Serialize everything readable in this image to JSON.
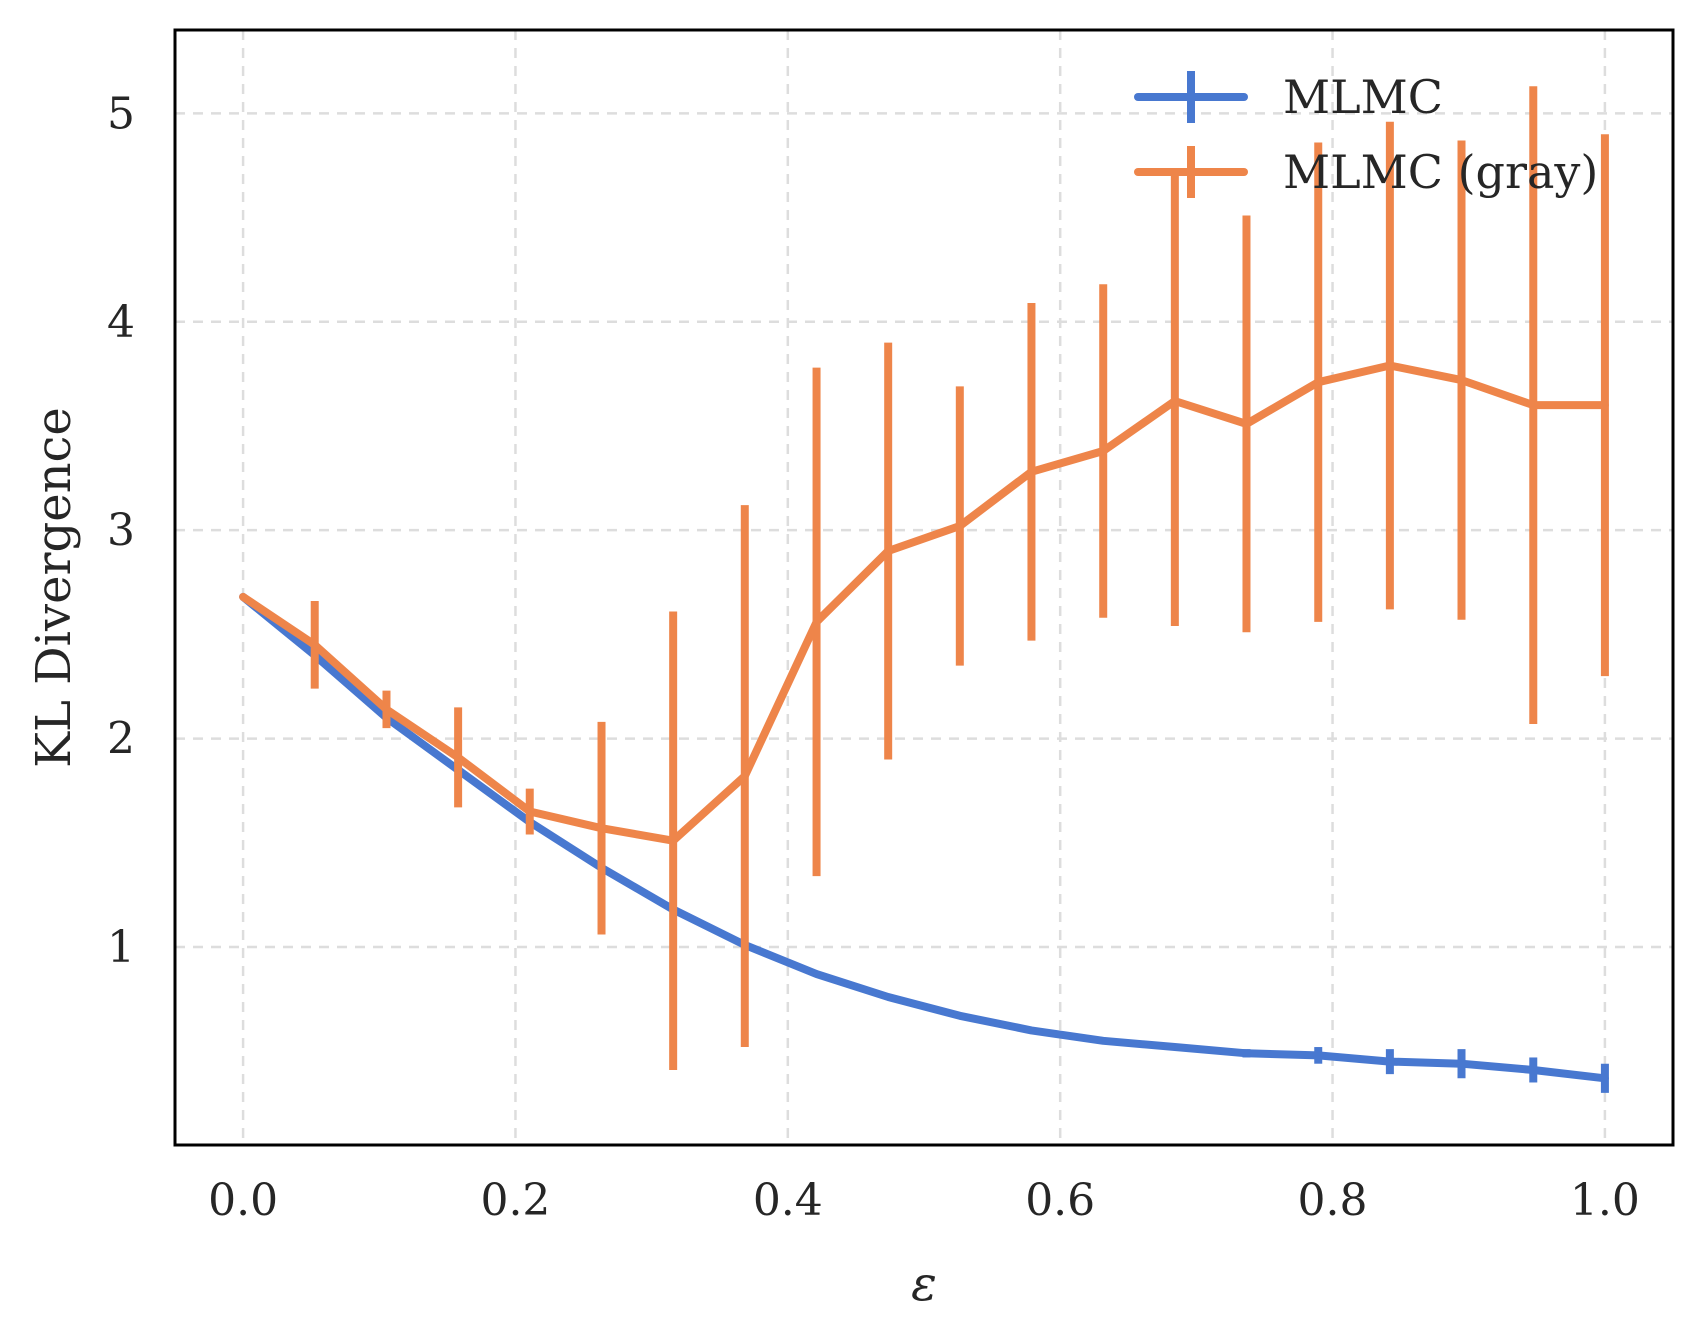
{
  "chart_data": {
    "type": "line",
    "title": "",
    "xlabel": "ε",
    "ylabel": "KL Divergence",
    "xlim": [
      -0.05,
      1.05
    ],
    "ylim": [
      0.05,
      5.4
    ],
    "xticks": [
      0.0,
      0.2,
      0.4,
      0.6,
      0.8,
      1.0
    ],
    "xtick_labels": [
      "0.0",
      "0.2",
      "0.4",
      "0.6",
      "0.8",
      "1.0"
    ],
    "yticks": [
      1,
      2,
      3,
      4,
      5
    ],
    "ytick_labels": [
      "1",
      "2",
      "3",
      "4",
      "5"
    ],
    "grid": true,
    "legend": "top-right",
    "x": [
      0.0,
      0.0526,
      0.1053,
      0.1579,
      0.2105,
      0.2632,
      0.3158,
      0.3684,
      0.4211,
      0.4737,
      0.5263,
      0.5789,
      0.6316,
      0.6842,
      0.7368,
      0.7895,
      0.8421,
      0.8947,
      0.9474,
      1.0
    ],
    "series": [
      {
        "name": "MLMC",
        "color": "#4878d0",
        "values": [
          2.68,
          2.4,
          2.1,
          1.85,
          1.6,
          1.38,
          1.18,
          1.01,
          0.87,
          0.76,
          0.67,
          0.6,
          0.55,
          0.52,
          0.49,
          0.48,
          0.45,
          0.44,
          0.41,
          0.37
        ],
        "errors": [
          0.0,
          0.0,
          0.0,
          0.0,
          0.0,
          0.0,
          0.0,
          0.0,
          0.0,
          0.0,
          0.0,
          0.0,
          0.0,
          0.01,
          0.02,
          0.04,
          0.06,
          0.07,
          0.06,
          0.07
        ]
      },
      {
        "name": "MLMC (gray)",
        "color": "#ee854a",
        "values": [
          2.68,
          2.45,
          2.14,
          1.91,
          1.65,
          1.57,
          1.51,
          1.82,
          2.56,
          2.9,
          3.02,
          3.28,
          3.38,
          3.62,
          3.51,
          3.71,
          3.79,
          3.72,
          3.6,
          3.6
        ],
        "errors": [
          0.0,
          0.21,
          0.09,
          0.24,
          0.11,
          0.51,
          1.1,
          1.3,
          1.22,
          1.0,
          0.67,
          0.81,
          0.8,
          1.08,
          1.0,
          1.15,
          1.17,
          1.15,
          1.53,
          1.3
        ]
      }
    ]
  }
}
